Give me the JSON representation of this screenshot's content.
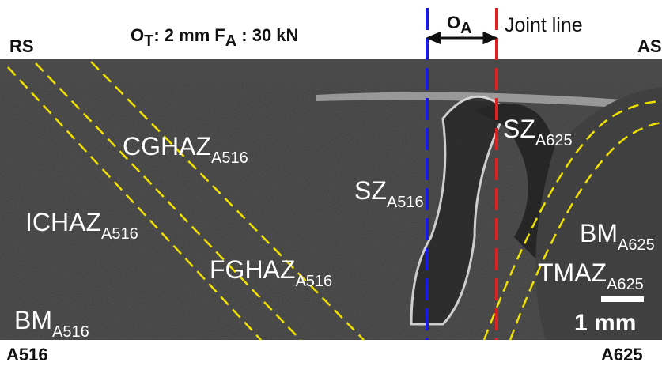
{
  "header": {
    "left": "RS",
    "conditions": [
      {
        "symbol": "O",
        "sub": "T",
        "text": ": 2 mm"
      },
      {
        "symbol": "F",
        "sub": "A",
        "text": " : 30 kN"
      }
    ],
    "offset": {
      "symbol": "O",
      "sub": "A"
    },
    "joint": "Joint line",
    "right": "AS"
  },
  "regions": [
    {
      "name": "CGHAZ",
      "sub": "A516"
    },
    {
      "name": "ICHAZ",
      "sub": "A516"
    },
    {
      "name": "FGHAZ",
      "sub": "A516"
    },
    {
      "name": "BM",
      "sub": "A516"
    },
    {
      "name": "SZ",
      "sub": "A516"
    },
    {
      "name": "SZ",
      "sub": "A625"
    },
    {
      "name": "BM",
      "sub": "A625"
    },
    {
      "name": "TMAZ",
      "sub": "A625"
    }
  ],
  "scale_bar": "1 mm",
  "footer": {
    "left": "A516",
    "right": "A625"
  }
}
